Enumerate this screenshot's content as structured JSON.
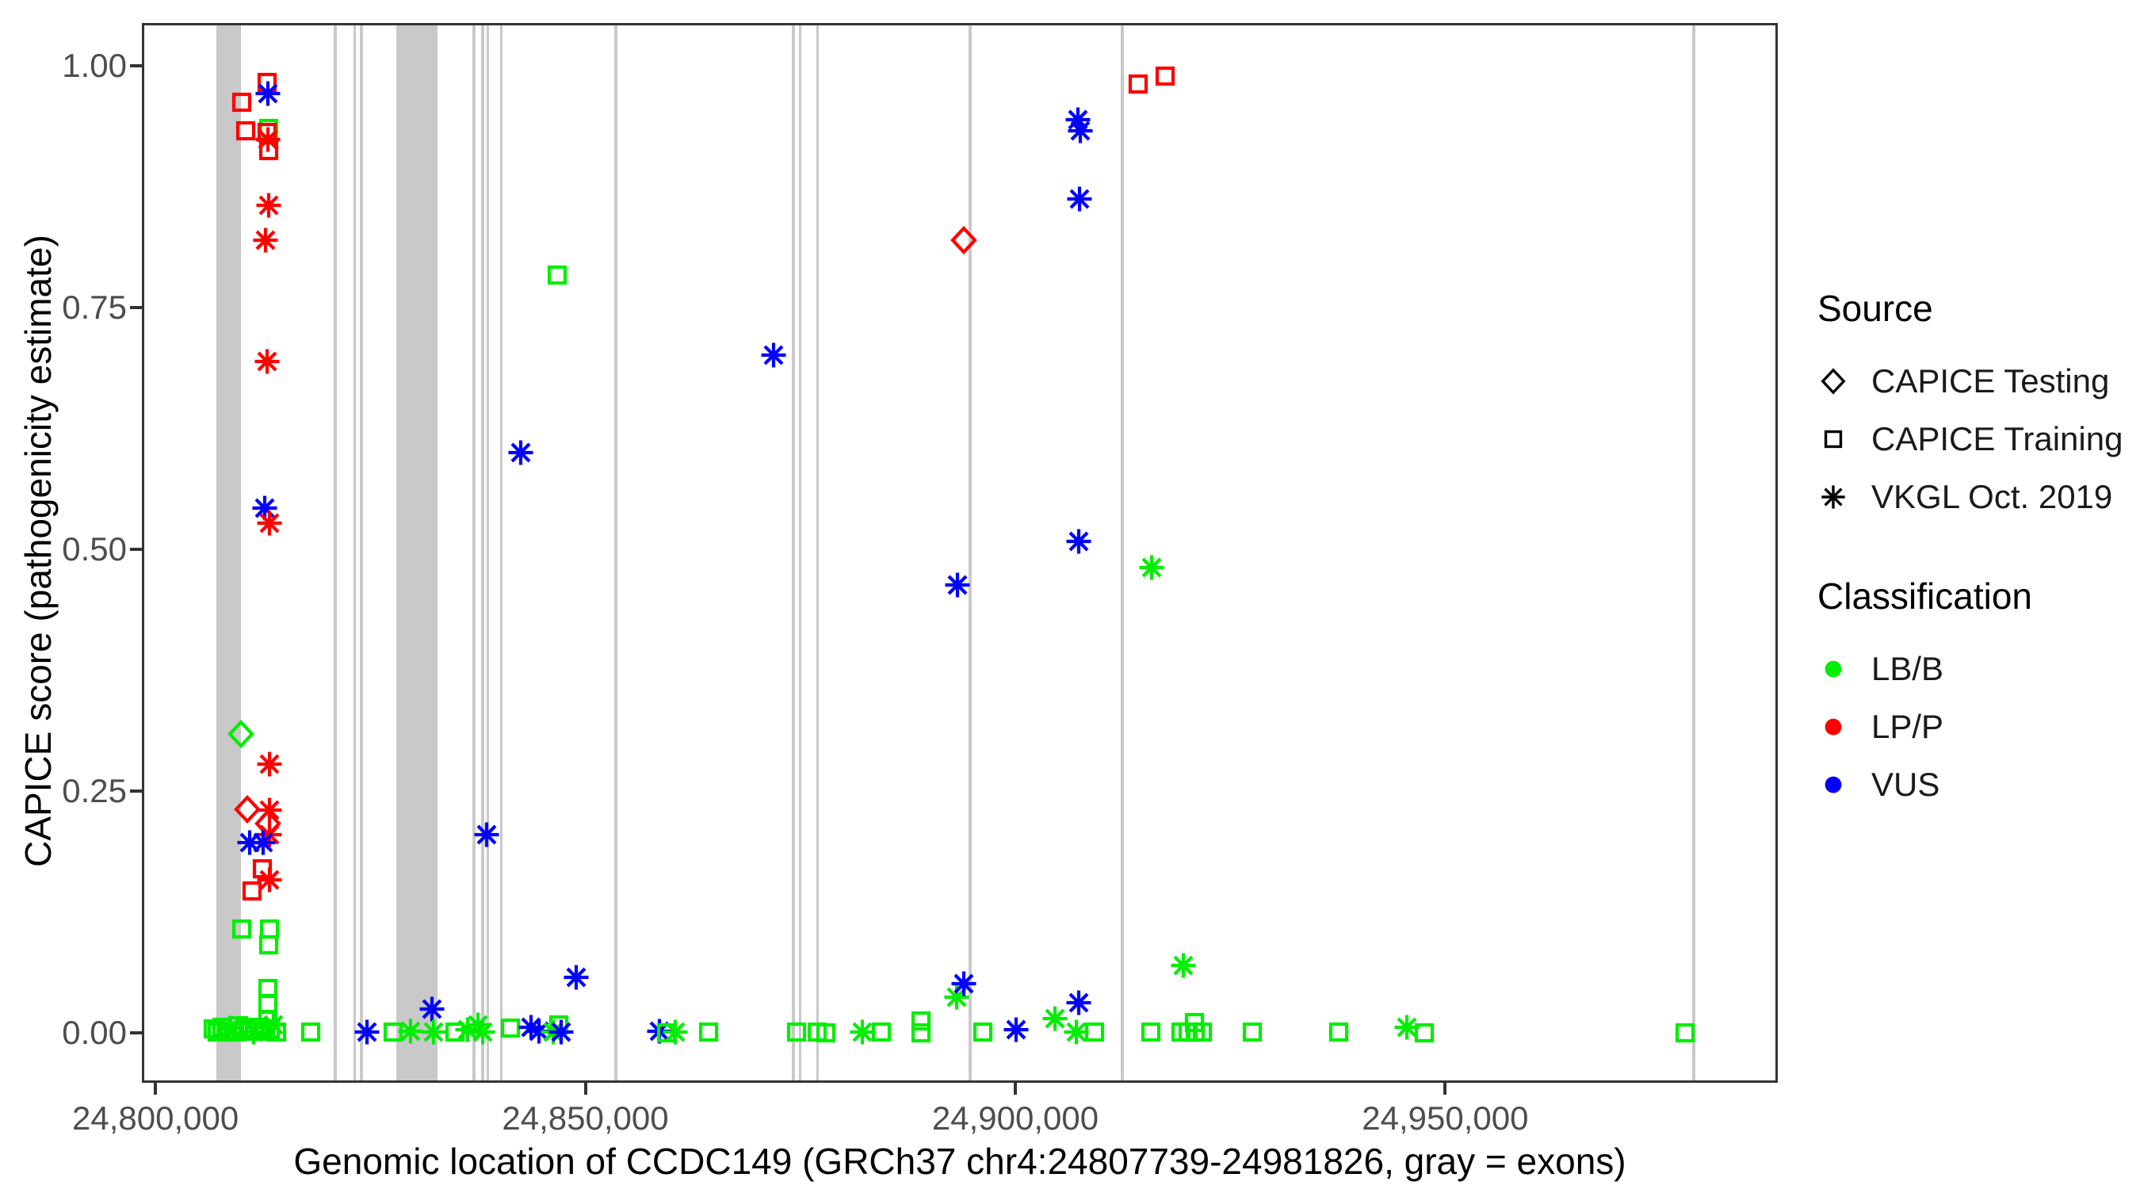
{
  "axes": {
    "y": {
      "title": "CAPICE score (pathogenicity estimate)",
      "tick_labels": [
        "1.00",
        "0.75",
        "0.50",
        "0.25",
        "0.00"
      ],
      "tick_values": [
        1.0,
        0.75,
        0.5,
        0.25,
        0.0
      ]
    },
    "x": {
      "title": "Genomic location of CCDC149 (GRCh37 chr4:24807739-24981826, gray = exons)",
      "tick_labels": [
        "24,800,000",
        "24,850,000",
        "24,900,000",
        "24,950,000"
      ],
      "tick_values": [
        24800000,
        24850000,
        24900000,
        24950000
      ]
    }
  },
  "legend": {
    "source": {
      "title": "Source",
      "items": [
        {
          "label": "CAPICE Testing",
          "shape": "diamond"
        },
        {
          "label": "CAPICE Training",
          "shape": "square"
        },
        {
          "label": "VKGL Oct. 2019",
          "shape": "asterisk"
        }
      ]
    },
    "classification": {
      "title": "Classification",
      "items": [
        {
          "label": "LB/B",
          "color": "#00ee00"
        },
        {
          "label": "LP/P",
          "color": "#ff0000"
        },
        {
          "label": "VUS",
          "color": "#0000ff"
        }
      ]
    }
  },
  "chart_data": {
    "type": "scatter",
    "title": "",
    "xlabel": "Genomic location of CCDC149 (GRCh37 chr4:24807739-24981826, gray = exons)",
    "ylabel": "CAPICE score (pathogenicity estimate)",
    "xlim": [
      24798700,
      24988400
    ],
    "ylim": [
      0.0,
      1.0
    ],
    "grid": false,
    "legend_position": "right",
    "exon_color": "#c9c9c9",
    "class_colors": {
      "LB/B": "#00ee00",
      "LP/P": "#ff0000",
      "VUS": "#0000ff"
    },
    "shape_source_map": {
      "diamond": "CAPICE Testing",
      "square": "CAPICE Training",
      "asterisk": "VKGL Oct. 2019"
    },
    "exons": [
      [
        24807100,
        24809900
      ],
      [
        24820700,
        24821100
      ],
      [
        24823000,
        24823350
      ],
      [
        24823800,
        24824150
      ],
      [
        24828000,
        24832800
      ],
      [
        24836900,
        24837200
      ],
      [
        24837900,
        24838200
      ],
      [
        24838500,
        24838750
      ],
      [
        24840050,
        24840300
      ],
      [
        24853400,
        24853700
      ],
      [
        24874050,
        24874350
      ],
      [
        24874800,
        24875050
      ],
      [
        24876850,
        24877150
      ],
      [
        24894600,
        24894950
      ],
      [
        24912300,
        24912650
      ],
      [
        24978700,
        24979050
      ]
    ],
    "point_format": [
      "x",
      "y",
      "shape",
      "class"
    ],
    "points": [
      [
        24813000,
        0.983,
        "square",
        "LP/P"
      ],
      [
        24813100,
        0.971,
        "asterisk",
        "VUS"
      ],
      [
        24810000,
        0.962,
        "square",
        "LP/P"
      ],
      [
        24810500,
        0.933,
        "square",
        "LP/P"
      ],
      [
        24813200,
        0.935,
        "square",
        "LB/B"
      ],
      [
        24813000,
        0.931,
        "square",
        "LP/P"
      ],
      [
        24813100,
        0.924,
        "asterisk",
        "LP/P"
      ],
      [
        24813200,
        0.912,
        "square",
        "LP/P"
      ],
      [
        24813200,
        0.856,
        "asterisk",
        "LP/P"
      ],
      [
        24812800,
        0.82,
        "asterisk",
        "LP/P"
      ],
      [
        24813000,
        0.694,
        "asterisk",
        "LP/P"
      ],
      [
        24812700,
        0.543,
        "asterisk",
        "VUS"
      ],
      [
        24813300,
        0.527,
        "asterisk",
        "LP/P"
      ],
      [
        24809900,
        0.309,
        "diamond",
        "LB/B"
      ],
      [
        24813300,
        0.278,
        "asterisk",
        "LP/P"
      ],
      [
        24810700,
        0.231,
        "diamond",
        "LP/P"
      ],
      [
        24813300,
        0.23,
        "asterisk",
        "LP/P"
      ],
      [
        24813100,
        0.216,
        "diamond",
        "LP/P"
      ],
      [
        24813300,
        0.205,
        "asterisk",
        "LP/P"
      ],
      [
        24811000,
        0.197,
        "asterisk",
        "VUS"
      ],
      [
        24812500,
        0.197,
        "asterisk",
        "VUS"
      ],
      [
        24812400,
        0.17,
        "square",
        "LP/P"
      ],
      [
        24813300,
        0.158,
        "asterisk",
        "LP/P"
      ],
      [
        24811200,
        0.147,
        "square",
        "LP/P"
      ],
      [
        24810000,
        0.107,
        "square",
        "LB/B"
      ],
      [
        24813300,
        0.107,
        "square",
        "LB/B"
      ],
      [
        24813200,
        0.091,
        "square",
        "LB/B"
      ],
      [
        24813100,
        0.046,
        "square",
        "LB/B"
      ],
      [
        24813100,
        0.03,
        "square",
        "LB/B"
      ],
      [
        24806700,
        0.004,
        "square",
        "LB/B"
      ],
      [
        24807200,
        0.001,
        "square",
        "LB/B"
      ],
      [
        24807700,
        0.006,
        "square",
        "LB/B"
      ],
      [
        24808200,
        0.002,
        "square",
        "LB/B"
      ],
      [
        24808700,
        0.005,
        "asterisk",
        "LB/B"
      ],
      [
        24809200,
        0.001,
        "square",
        "LB/B"
      ],
      [
        24809700,
        0.007,
        "square",
        "LB/B"
      ],
      [
        24810200,
        0.002,
        "square",
        "LB/B"
      ],
      [
        24810800,
        0.005,
        "square",
        "LB/B"
      ],
      [
        24811400,
        0.001,
        "asterisk",
        "LB/B"
      ],
      [
        24812000,
        0.006,
        "square",
        "LB/B"
      ],
      [
        24812600,
        0.002,
        "square",
        "LB/B"
      ],
      [
        24813100,
        0.013,
        "square",
        "LB/B"
      ],
      [
        24813400,
        0.004,
        "square",
        "LB/B"
      ],
      [
        24813700,
        0.008,
        "asterisk",
        "LB/B"
      ],
      [
        24814100,
        0.001,
        "square",
        "LB/B"
      ],
      [
        24818100,
        0.001,
        "square",
        "LB/B"
      ],
      [
        24824600,
        0.001,
        "asterisk",
        "VUS"
      ],
      [
        24827600,
        0.001,
        "square",
        "LB/B"
      ],
      [
        24829700,
        0.002,
        "asterisk",
        "LB/B"
      ],
      [
        24832200,
        0.025,
        "asterisk",
        "VUS"
      ],
      [
        24832300,
        0.001,
        "asterisk",
        "LB/B"
      ],
      [
        24834800,
        0.001,
        "square",
        "LB/B"
      ],
      [
        24836300,
        0.003,
        "asterisk",
        "LB/B"
      ],
      [
        24837500,
        0.008,
        "asterisk",
        "LB/B"
      ],
      [
        24838100,
        0.001,
        "asterisk",
        "LB/B"
      ],
      [
        24838500,
        0.205,
        "asterisk",
        "VUS"
      ],
      [
        24841300,
        0.005,
        "square",
        "LB/B"
      ],
      [
        24842500,
        0.6,
        "asterisk",
        "VUS"
      ],
      [
        24843700,
        0.006,
        "asterisk",
        "VUS"
      ],
      [
        24844600,
        0.002,
        "asterisk",
        "VUS"
      ],
      [
        24846300,
        0.001,
        "asterisk",
        "LB/B"
      ],
      [
        24846900,
        0.008,
        "square",
        "LB/B"
      ],
      [
        24847200,
        0.001,
        "asterisk",
        "VUS"
      ],
      [
        24846700,
        0.784,
        "square",
        "LB/B"
      ],
      [
        24848900,
        0.057,
        "asterisk",
        "VUS"
      ],
      [
        24858600,
        0.002,
        "asterisk",
        "VUS"
      ],
      [
        24859400,
        0.0,
        "square",
        "LB/B"
      ],
      [
        24860500,
        0.001,
        "asterisk",
        "LB/B"
      ],
      [
        24864300,
        0.001,
        "square",
        "LB/B"
      ],
      [
        24871900,
        0.701,
        "asterisk",
        "VUS"
      ],
      [
        24874600,
        0.001,
        "square",
        "LB/B"
      ],
      [
        24877000,
        0.001,
        "square",
        "LB/B"
      ],
      [
        24878000,
        0.0,
        "square",
        "LB/B"
      ],
      [
        24882200,
        0.001,
        "asterisk",
        "LB/B"
      ],
      [
        24884400,
        0.001,
        "square",
        "LB/B"
      ],
      [
        24889000,
        0.012,
        "square",
        "LB/B"
      ],
      [
        24889000,
        0.0,
        "square",
        "LB/B"
      ],
      [
        24893200,
        0.037,
        "asterisk",
        "LB/B"
      ],
      [
        24894000,
        0.051,
        "asterisk",
        "VUS"
      ],
      [
        24894000,
        0.82,
        "diamond",
        "LP/P"
      ],
      [
        24893300,
        0.463,
        "asterisk",
        "VUS"
      ],
      [
        24896200,
        0.001,
        "square",
        "LB/B"
      ],
      [
        24900100,
        0.003,
        "asterisk",
        "VUS"
      ],
      [
        24904600,
        0.015,
        "asterisk",
        "LB/B"
      ],
      [
        24907300,
        0.944,
        "asterisk",
        "VUS"
      ],
      [
        24907600,
        0.933,
        "asterisk",
        "VUS"
      ],
      [
        24907500,
        0.862,
        "asterisk",
        "VUS"
      ],
      [
        24907400,
        0.508,
        "asterisk",
        "VUS"
      ],
      [
        24907400,
        0.031,
        "asterisk",
        "VUS"
      ],
      [
        24907100,
        0.001,
        "asterisk",
        "LB/B"
      ],
      [
        24909200,
        0.001,
        "square",
        "LB/B"
      ],
      [
        24914300,
        0.981,
        "square",
        "LP/P"
      ],
      [
        24917400,
        0.989,
        "square",
        "LP/P"
      ],
      [
        24915900,
        0.481,
        "asterisk",
        "LB/B"
      ],
      [
        24915800,
        0.001,
        "square",
        "LB/B"
      ],
      [
        24919500,
        0.07,
        "asterisk",
        "LB/B"
      ],
      [
        24920800,
        0.011,
        "square",
        "LB/B"
      ],
      [
        24919300,
        0.001,
        "square",
        "LB/B"
      ],
      [
        24920100,
        0.001,
        "square",
        "LB/B"
      ],
      [
        24920900,
        0.001,
        "square",
        "LB/B"
      ],
      [
        24921800,
        0.001,
        "square",
        "LB/B"
      ],
      [
        24927600,
        0.001,
        "square",
        "LB/B"
      ],
      [
        24937600,
        0.001,
        "square",
        "LB/B"
      ],
      [
        24945500,
        0.006,
        "asterisk",
        "LB/B"
      ],
      [
        24947600,
        0.0,
        "square",
        "LB/B"
      ],
      [
        24977900,
        0.0,
        "square",
        "LB/B"
      ]
    ]
  }
}
